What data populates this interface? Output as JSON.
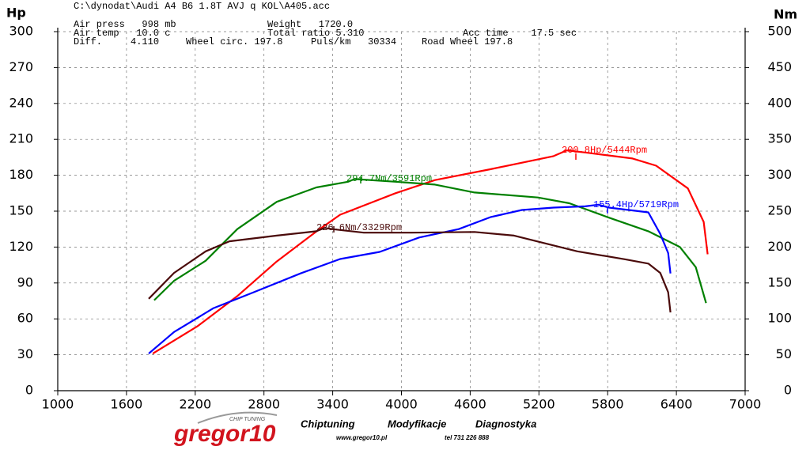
{
  "chart_data": {
    "type": "line",
    "header": [
      "C:\\dynodat\\Audi A4 B6 1.8T AVJ q KOL\\A405.acc",
      "Air press   998 mb",
      "Weight   1720.0",
      "Air temp   10.0 c",
      "Total ratio 5.310",
      "Acc time    17.5 sec",
      "Diff.     4.110",
      "Wheel circ. 197.8",
      "Puls/km   30334",
      "Road Wheel 197.8"
    ],
    "y_label": "Hp",
    "y2_label": "Nm",
    "xlim": [
      1000,
      7000
    ],
    "xticks": [
      1000,
      1600,
      2200,
      2800,
      3400,
      4000,
      4600,
      5200,
      5800,
      6400,
      7000
    ],
    "ylim": [
      0,
      300
    ],
    "yticks": [
      0,
      30,
      60,
      90,
      120,
      150,
      180,
      210,
      240,
      270,
      300
    ],
    "y2lim": [
      0,
      500
    ],
    "y2ticks": [
      0,
      50,
      100,
      150,
      200,
      250,
      300,
      350,
      400,
      450,
      500
    ],
    "grid": true,
    "series": [
      {
        "color": "#ff0000",
        "x": [
          1829,
          2222,
          2567,
          2912,
          3257,
          3465,
          3948,
          4293,
          4776,
          5328,
          5444,
          5604,
          6017,
          6223,
          6500,
          6638,
          6673
        ],
        "values": [
          31,
          54,
          79,
          108,
          133,
          147,
          165,
          176,
          185,
          196,
          200.8,
          199,
          194,
          188,
          169,
          141,
          114
        ]
      },
      {
        "color": "#008000",
        "axis": "y2",
        "x": [
          1842,
          2015,
          2291,
          2567,
          2912,
          3257,
          3534,
          3591,
          3948,
          4293,
          4638,
          5190,
          5466,
          5811,
          6155,
          6431,
          6569,
          6659
        ],
        "values": [
          126,
          153,
          181,
          225,
          263,
          283,
          291,
          294.7,
          291,
          287,
          276,
          269,
          261,
          241,
          222,
          200,
          172,
          122
        ]
      },
      {
        "color": "#0000ff",
        "x": [
          1794,
          2015,
          2360,
          2705,
          3120,
          3465,
          3810,
          4155,
          4500,
          4776,
          5052,
          5328,
          5604,
          5719,
          5811,
          6155,
          6259,
          6328,
          6348
        ],
        "values": [
          31,
          49,
          69,
          82,
          98,
          110,
          116,
          128,
          135,
          145,
          151,
          153,
          154,
          155.4,
          153,
          149,
          131,
          115,
          98
        ]
      },
      {
        "color": "#4a0a0a",
        "axis": "y2",
        "x": [
          1794,
          2015,
          2291,
          2498,
          2912,
          3257,
          3329,
          3395,
          3672,
          4086,
          4638,
          4983,
          5535,
          5949,
          6155,
          6259,
          6328,
          6348
        ],
        "values": [
          128,
          164,
          194,
          208,
          216,
          222,
          226.6,
          225,
          220,
          220,
          221,
          216,
          194,
          183,
          177,
          164,
          137,
          109
        ]
      }
    ],
    "annotations": [
      "200.8Hp/5444Rpm",
      "294.7Nm/3591Rpm",
      "155.4Hp/5719Rpm",
      "226.6Nm/3329Rpm"
    ],
    "footer": [
      "gregor10",
      "CHIP TUNING",
      "Chiptuning",
      "Modyfikacje",
      "Diagnostyka",
      "www.gregor10.pl",
      "tel 731 226 888"
    ]
  }
}
